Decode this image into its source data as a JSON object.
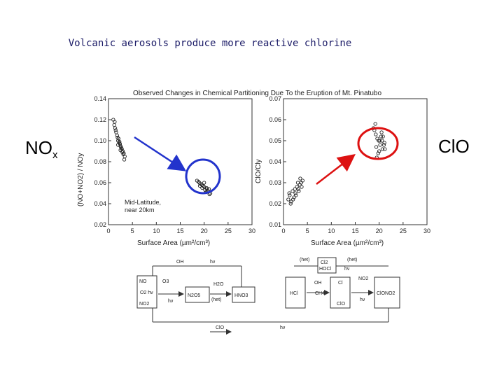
{
  "slide": {
    "title": "Volcanic aerosols produce more reactive chlorine",
    "left_label_main": "NO",
    "left_label_sub": "x",
    "right_label": "ClO"
  },
  "figure": {
    "title": "Observed Changes in Chemical Partitioning Due To the Eruption of Mt. Pinatubo",
    "annotation_line1": "Mid-Latitude,",
    "annotation_line2": "near 20km",
    "highlight_colors": {
      "left_ellipse": "#2233cc",
      "right_ellipse": "#dd1111",
      "left_arrow": "#2233cc",
      "right_arrow": "#dd1111"
    }
  },
  "chart_data": [
    {
      "type": "scatter",
      "xlabel": "Surface Area (µm²/cm³)",
      "ylabel": "(NO+NO2) / NOy",
      "xlim": [
        0,
        30
      ],
      "ylim": [
        0.02,
        0.14
      ],
      "xticks": [
        "0",
        "5",
        "10",
        "15",
        "20",
        "25",
        "30"
      ],
      "yticks": [
        "0.02",
        "0.04",
        "0.06",
        "0.08",
        "0.10",
        "0.12",
        "0.14"
      ],
      "x": [
        1,
        1.2,
        1.5,
        1.8,
        2,
        2.2,
        2.5,
        2.8,
        3,
        3.2,
        1.3,
        1.6,
        2.1,
        2.4,
        2.7,
        3.1,
        3.4,
        1.9,
        2.3,
        2.6,
        2.9,
        1.4,
        2.0,
        2.5,
        3.3,
        19,
        19.5,
        20,
        20.5,
        21,
        18.5,
        19.2,
        19.8,
        20.2,
        20.8,
        21.3,
        18.8,
        19.6,
        20.4,
        21.1,
        19.1,
        20.0,
        20.6
      ],
      "y": [
        0.12,
        0.115,
        0.11,
        0.105,
        0.1,
        0.098,
        0.095,
        0.092,
        0.09,
        0.088,
        0.118,
        0.108,
        0.102,
        0.097,
        0.093,
        0.087,
        0.085,
        0.103,
        0.099,
        0.094,
        0.089,
        0.112,
        0.096,
        0.091,
        0.082,
        0.06,
        0.058,
        0.056,
        0.055,
        0.054,
        0.062,
        0.059,
        0.057,
        0.053,
        0.052,
        0.05,
        0.061,
        0.055,
        0.051,
        0.049,
        0.057,
        0.06,
        0.054
      ]
    },
    {
      "type": "scatter",
      "xlabel": "Surface Area (µm²/cm³)",
      "ylabel": "ClO/Cly",
      "xlim": [
        0,
        30
      ],
      "ylim": [
        0.01,
        0.07
      ],
      "xticks": [
        "0",
        "5",
        "10",
        "15",
        "20",
        "25",
        "30"
      ],
      "yticks": [
        "0.01",
        "0.02",
        "0.03",
        "0.04",
        "0.05",
        "0.06",
        "0.07"
      ],
      "x": [
        1,
        1.3,
        1.6,
        1.9,
        2.2,
        2.5,
        2.8,
        3.1,
        3.4,
        3.7,
        4,
        1.5,
        2,
        2.6,
        3.2,
        3.8,
        1.2,
        2.4,
        3,
        3.5,
        19,
        19.3,
        19.6,
        19.9,
        20.2,
        20.5,
        20.8,
        21.1,
        18.8,
        19.4,
        20,
        20.6,
        21.2,
        19.2,
        19.8,
        20.4,
        21,
        19.5,
        20.1,
        20.7
      ],
      "y": [
        0.022,
        0.024,
        0.021,
        0.026,
        0.023,
        0.025,
        0.028,
        0.027,
        0.029,
        0.03,
        0.031,
        0.02,
        0.022,
        0.024,
        0.026,
        0.028,
        0.025,
        0.027,
        0.03,
        0.032,
        0.055,
        0.053,
        0.051,
        0.05,
        0.048,
        0.054,
        0.052,
        0.049,
        0.056,
        0.047,
        0.045,
        0.05,
        0.046,
        0.058,
        0.044,
        0.052,
        0.048,
        0.042,
        0.05,
        0.046
      ]
    }
  ],
  "diagram": {
    "left": {
      "oh": "OH",
      "hv": "hν",
      "no": "NO",
      "o3a": "O3",
      "no2": "NO2",
      "o2hv": "O2 hν",
      "o3b": "O3",
      "n2o5": "N2O5",
      "h2o": "H2O",
      "het": "(het)",
      "hno3": "HNO3",
      "hv2": "hν"
    },
    "right": {
      "het1": "(het)",
      "cl2": "Cl2",
      "hocl": "HOCl",
      "het2": "(het)",
      "hv": "hν",
      "oh": "OH",
      "cl": "Cl",
      "no2": "NO2",
      "hcl": "HCl",
      "ch4": "CH4",
      "clo": "ClO",
      "hv2": "hν",
      "clono2": "ClONO2"
    },
    "bottom": {
      "clo": "ClO",
      "hv": "hν"
    }
  }
}
